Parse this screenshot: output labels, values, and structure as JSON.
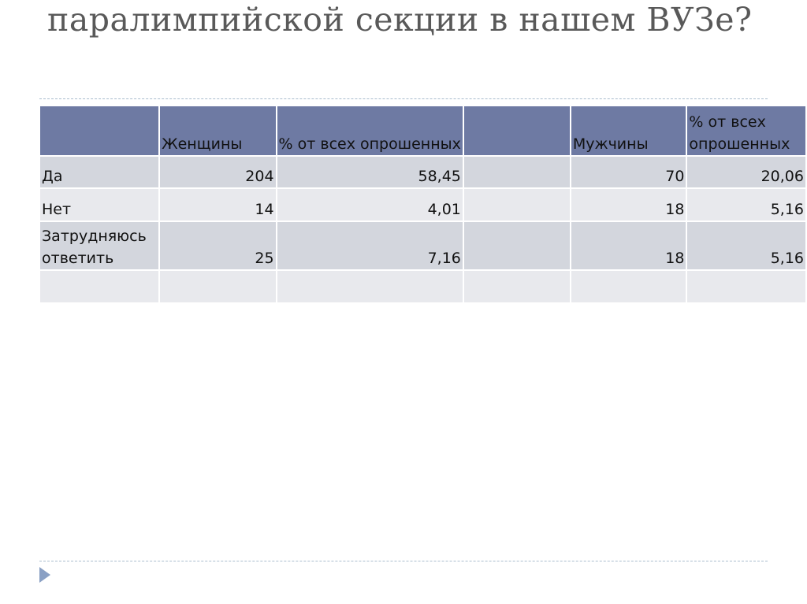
{
  "slide": {
    "title": "паралимпийской секции в нашем ВУЗе?"
  },
  "table": {
    "headers": [
      "",
      "Женщины",
      "% от всех опрошенных",
      "",
      "Мужчины",
      "% от всех опрошенных"
    ],
    "rows": [
      [
        "Да",
        "204",
        "58,45",
        "",
        "70",
        "20,06"
      ],
      [
        "Нет",
        "14",
        "4,01",
        "",
        "18",
        "5,16"
      ],
      [
        "Затрудняюсь ответить",
        "25",
        "7,16",
        "",
        "18",
        "5,16"
      ],
      [
        "",
        "",
        "",
        "",
        "",
        ""
      ]
    ]
  },
  "colors": {
    "header_bg": "#6e7aa3",
    "row_dark": "#d3d6dd",
    "row_light": "#e8e9ed",
    "title_text": "#595959",
    "accent": "#8aa0c4"
  },
  "icons": {
    "nav": "triangle-right-icon"
  }
}
